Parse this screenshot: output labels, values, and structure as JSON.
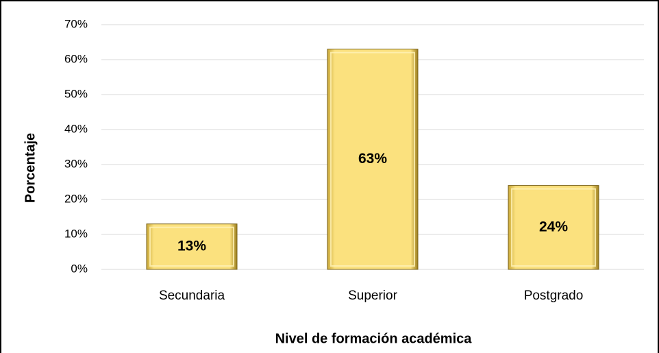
{
  "chart_data": {
    "type": "bar",
    "categories": [
      "Secundaria",
      "Superior",
      "Postgrado"
    ],
    "values": [
      13,
      63,
      24
    ],
    "value_labels": [
      "13%",
      "63%",
      "24%"
    ],
    "color": "#fbe17e",
    "xlabel": "Nivel de formación académica",
    "ylabel": "Porcentaje",
    "ylim": [
      0,
      70
    ],
    "yticks": [
      {
        "value": 0,
        "label": "0%"
      },
      {
        "value": 10,
        "label": "10%"
      },
      {
        "value": 20,
        "label": "20%"
      },
      {
        "value": 30,
        "label": "30%"
      },
      {
        "value": 40,
        "label": "40%"
      },
      {
        "value": 50,
        "label": "50%"
      },
      {
        "value": 60,
        "label": "60%"
      },
      {
        "value": 70,
        "label": "70%"
      }
    ],
    "grid": true
  }
}
